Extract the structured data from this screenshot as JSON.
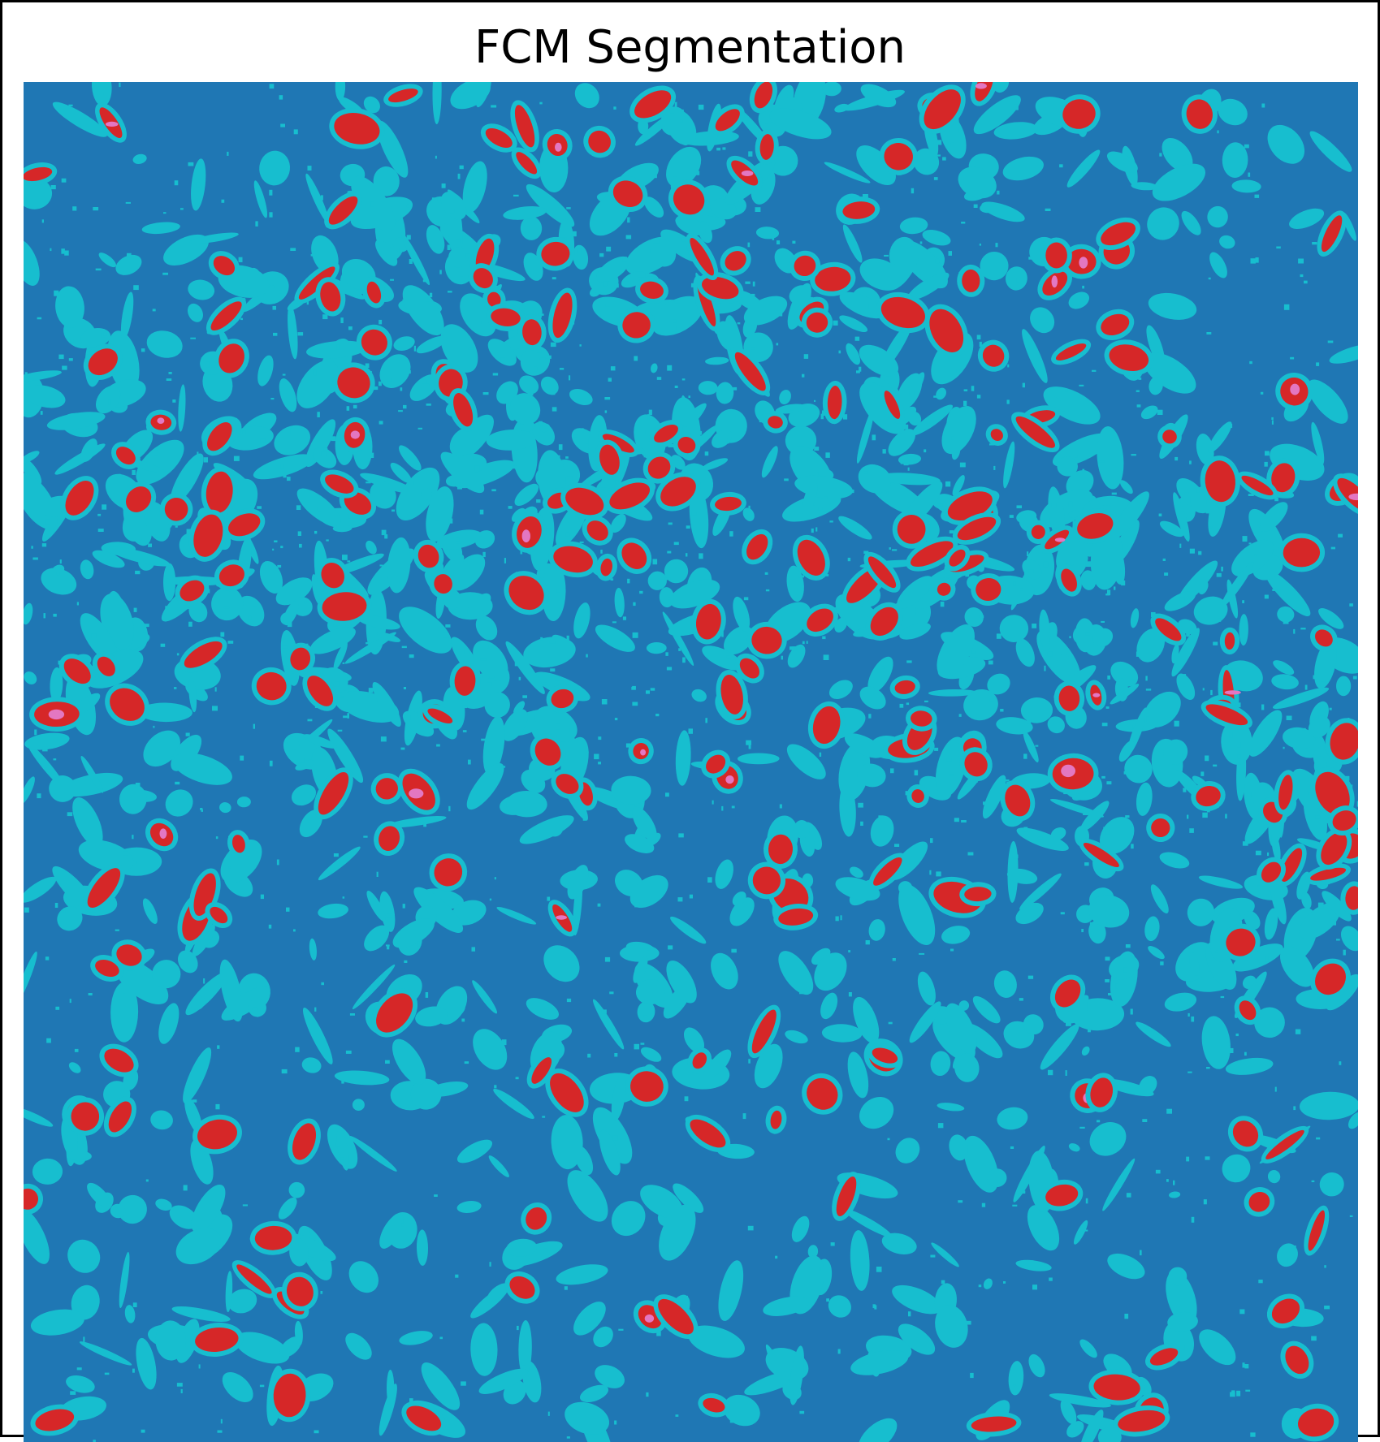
{
  "figure": {
    "title": "FCM Segmentation"
  },
  "segmentation": {
    "description_classes": 4,
    "colors": {
      "background": "#1f77b4",
      "tissue": "#17becf",
      "nuclei": "#d62728",
      "highlight": "#e377c2"
    }
  }
}
